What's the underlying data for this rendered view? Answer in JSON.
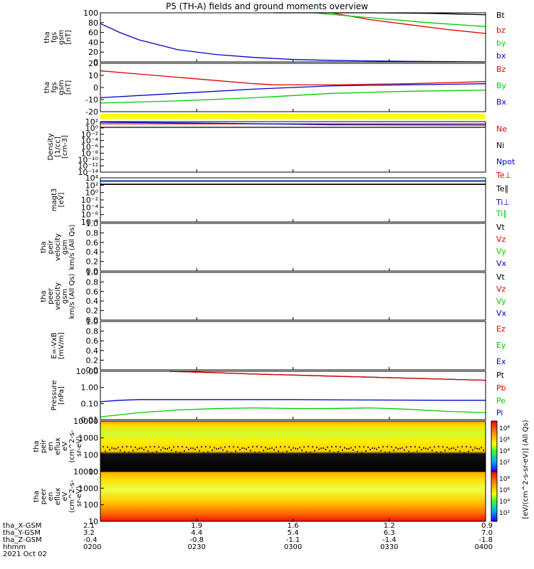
{
  "title": "P5 (TH-A) fields and ground moments overview",
  "chart_data": [
    {
      "type": "line",
      "ylabel": [
        "tha",
        "fgs",
        "gsm",
        "[nT]"
      ],
      "yticks": [
        "100",
        "80",
        "60",
        "40",
        "20",
        "0"
      ],
      "ylim": [
        0,
        100
      ],
      "series": [
        {
          "name": "Bt",
          "color": "#000000",
          "x": [
            0.45,
            0.7,
            0.85,
            1.0
          ],
          "y": [
            102,
            100,
            99,
            96
          ]
        },
        {
          "name": "bz",
          "color": "#e00000",
          "x": [
            0.6,
            0.7,
            0.8,
            0.9,
            1.0
          ],
          "y": [
            101,
            86,
            76,
            66,
            58
          ]
        },
        {
          "name": "by",
          "color": "#00cc00",
          "x": [
            0.55,
            0.7,
            0.85,
            1.0
          ],
          "y": [
            101,
            90,
            80,
            72
          ]
        },
        {
          "name": "bx",
          "color": "#0000cc",
          "x": [
            0.0,
            0.05,
            0.1,
            0.15,
            0.2,
            0.3,
            0.4,
            0.5,
            0.6,
            0.8,
            1.0
          ],
          "y": [
            78,
            60,
            45,
            35,
            25,
            15,
            9,
            5,
            3,
            1,
            0
          ]
        }
      ]
    },
    {
      "type": "line",
      "ylabel": [
        "tha",
        "fgs",
        "gsm",
        "[nT]"
      ],
      "yticks": [
        "20",
        "10",
        "0",
        "-10",
        "-20"
      ],
      "ylim": [
        -25,
        20
      ],
      "series": [
        {
          "name": "Bz",
          "color": "#e00000",
          "x": [
            0.0,
            0.1,
            0.2,
            0.3,
            0.4,
            0.45,
            0.6,
            0.8,
            1.0
          ],
          "y": [
            13,
            10,
            7,
            4,
            1,
            0,
            0,
            1,
            3
          ]
        },
        {
          "name": "By",
          "color": "#00cc00",
          "x": [
            0.0,
            0.2,
            0.4,
            0.6,
            0.8,
            1.0
          ],
          "y": [
            -17,
            -15,
            -12,
            -8,
            -6,
            -5
          ]
        },
        {
          "name": "Bx",
          "color": "#0000cc",
          "x": [
            0.0,
            0.2,
            0.4,
            0.6,
            0.8,
            1.0
          ],
          "y": [
            -12,
            -8,
            -4,
            -1,
            0,
            1
          ]
        }
      ]
    },
    {
      "type": "line",
      "ylabel": [
        "Density",
        "[1/cc]",
        "[cm-3]"
      ],
      "yticks": [
        "10²",
        "10⁰",
        "10⁻²",
        "10⁻⁴",
        "10⁻⁶",
        "10⁻⁸",
        "10⁻¹⁰",
        "10⁻¹²",
        "10⁻¹⁴"
      ],
      "ylim": [
        -14,
        2
      ],
      "series": [
        {
          "name": "Ne",
          "color": "#e00000",
          "x": [
            0.0,
            1.0
          ],
          "y": [
            1.3,
            1.3
          ]
        },
        {
          "name": "Ni",
          "color": "#000000",
          "x": [
            0.0,
            1.0
          ],
          "y": [
            0.2,
            0.2
          ]
        },
        {
          "name": "Npot",
          "color": "#0000cc",
          "x": [
            0.0,
            0.3,
            0.6,
            1.0
          ],
          "y": [
            1.8,
            1.5,
            1.0,
            0.9
          ]
        }
      ]
    },
    {
      "type": "line",
      "ylabel": [
        "magt3",
        "[eV]"
      ],
      "yticks": [
        "10⁴",
        "10²",
        "10⁰",
        "10⁻²",
        "10⁻⁴",
        "10⁻⁶",
        "10⁻⁸"
      ],
      "ylim": [
        -8,
        4
      ],
      "series": [
        {
          "name": "Te⊥",
          "color": "#e00000",
          "x": [
            0.0,
            1.0
          ],
          "y": [
            2.3,
            2.3
          ]
        },
        {
          "name": "Te∥",
          "color": "#000000",
          "x": [
            0.0,
            1.0
          ],
          "y": [
            2.2,
            2.2
          ]
        },
        {
          "name": "Ti⊥",
          "color": "#0000cc",
          "x": [
            0.0,
            1.0
          ],
          "y": [
            3.2,
            3.2
          ]
        },
        {
          "name": "Ti∥",
          "color": "#00cc00",
          "x": [
            0.0,
            1.0
          ],
          "y": [
            3.0,
            3.0
          ]
        }
      ]
    },
    {
      "type": "line",
      "ylabel": [
        "tha",
        "peir",
        "velocity",
        "gsm",
        "km/s (All Qs)"
      ],
      "yticks": [
        "1.0",
        "0.8",
        "0.6",
        "0.4",
        "0.2",
        "0.0"
      ],
      "ylim": [
        0,
        1
      ],
      "series": [
        {
          "name": "Vt",
          "color": "#000000",
          "x": [],
          "y": []
        },
        {
          "name": "Vz",
          "color": "#e00000",
          "x": [],
          "y": []
        },
        {
          "name": "Vy",
          "color": "#00cc00",
          "x": [],
          "y": []
        },
        {
          "name": "Vx",
          "color": "#0000cc",
          "x": [],
          "y": []
        }
      ]
    },
    {
      "type": "line",
      "ylabel": [
        "tha",
        "peer",
        "velocity",
        "gsm",
        "km/s (All Qs)"
      ],
      "yticks": [
        "1.0",
        "0.8",
        "0.6",
        "0.4",
        "0.2",
        "0.0"
      ],
      "ylim": [
        0,
        1
      ],
      "series": [
        {
          "name": "Vt",
          "color": "#000000",
          "x": [],
          "y": []
        },
        {
          "name": "Vz",
          "color": "#e00000",
          "x": [],
          "y": []
        },
        {
          "name": "Vy",
          "color": "#00cc00",
          "x": [],
          "y": []
        },
        {
          "name": "Vx",
          "color": "#0000cc",
          "x": [],
          "y": []
        }
      ]
    },
    {
      "type": "line",
      "ylabel": [
        "E=-VxB",
        "[mV/m]"
      ],
      "yticks": [
        "1.0",
        "0.8",
        "0.6",
        "0.4",
        "0.2",
        "0.0"
      ],
      "ylim": [
        0,
        1
      ],
      "series": [
        {
          "name": "Ez",
          "color": "#e00000",
          "x": [],
          "y": []
        },
        {
          "name": "Ey",
          "color": "#00cc00",
          "x": [],
          "y": []
        },
        {
          "name": "Ex",
          "color": "#0000cc",
          "x": [],
          "y": []
        }
      ]
    },
    {
      "type": "line",
      "ylabel": [
        "Pressure",
        "[nPa]"
      ],
      "yticks": [
        "10.00",
        "1.00",
        "0.10",
        "0.01"
      ],
      "ylim": [
        -2.2,
        1.3
      ],
      "log": true,
      "series": [
        {
          "name": "Pt",
          "color": "#000000",
          "x": [
            0.18,
            0.4,
            0.6,
            0.8,
            1.0
          ],
          "y": [
            1.3,
            1.1,
            0.95,
            0.8,
            0.65
          ]
        },
        {
          "name": "Pb",
          "color": "#e00000",
          "x": [
            0.18,
            0.4,
            0.6,
            0.8,
            1.0
          ],
          "y": [
            1.3,
            1.1,
            0.95,
            0.8,
            0.65
          ]
        },
        {
          "name": "Pe",
          "color": "#00cc00",
          "x": [
            0.0,
            0.1,
            0.2,
            0.3,
            0.4,
            0.5,
            0.6,
            0.7,
            0.8,
            0.9,
            1.0
          ],
          "y": [
            -2.0,
            -1.7,
            -1.5,
            -1.4,
            -1.35,
            -1.4,
            -1.4,
            -1.35,
            -1.45,
            -1.6,
            -1.7
          ]
        },
        {
          "name": "Pi",
          "color": "#0000cc",
          "x": [
            0.0,
            0.05,
            0.1,
            0.3,
            0.5,
            0.7,
            0.9,
            1.0
          ],
          "y": [
            -0.9,
            -0.8,
            -0.75,
            -0.75,
            -0.75,
            -0.78,
            -0.8,
            -0.8
          ]
        }
      ]
    },
    {
      "type": "heatmap",
      "ylabel": [
        "tha",
        "peir",
        "en",
        "eflux",
        "eV",
        "(cm^2-s-",
        "sr-eV)"
      ],
      "yticks": [
        "10000",
        "1000",
        "100",
        "10"
      ],
      "ylim": [
        10,
        10000
      ],
      "log": true
    },
    {
      "type": "heatmap",
      "ylabel": [
        "tha",
        "peer",
        "en",
        "eflux",
        "eV",
        "(cm^2-s-",
        "sr-eV)"
      ],
      "yticks": [
        "10000",
        "1000",
        "100",
        "10"
      ],
      "ylim": [
        10,
        10000
      ],
      "log": true
    }
  ],
  "colorbar": {
    "label": "[eV/(cm^2-s-sr-eV)] (All Qs)",
    "upper_ticks": [
      "10⁸",
      "10⁶",
      "10⁴",
      "10²"
    ],
    "lower_ticks": [
      "10⁸",
      "10⁶",
      "10⁴",
      "10²"
    ]
  },
  "xaxis": {
    "row_labels": [
      "tha_X-GSM",
      "tha_Y-GSM",
      "tha_Z-GSM",
      "hhmm",
      "2021 Oct 02"
    ],
    "ticks": [
      {
        "x": "2.1",
        "y": "3.2",
        "z": "-0.4",
        "t": "0200"
      },
      {
        "x": "1.9",
        "y": "4.4",
        "z": "-0.8",
        "t": "0230"
      },
      {
        "x": "1.6",
        "y": "5.4",
        "z": "-1.1",
        "t": "0300"
      },
      {
        "x": "1.2",
        "y": "6.3",
        "z": "-1.4",
        "t": "0330"
      },
      {
        "x": "0.9",
        "y": "7.0",
        "z": "-1.8",
        "t": "0400"
      }
    ]
  }
}
